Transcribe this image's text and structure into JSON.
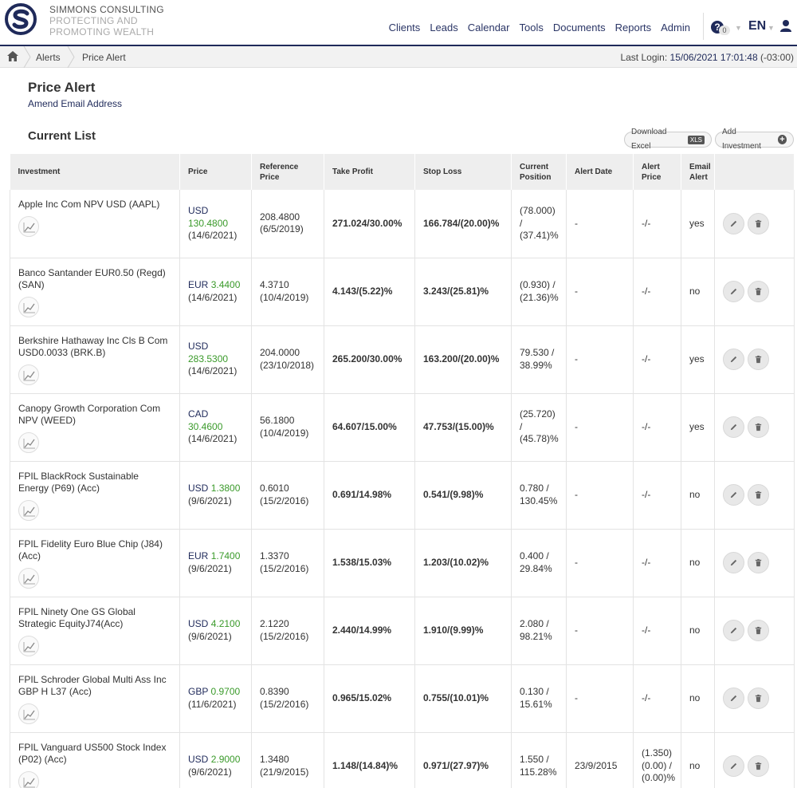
{
  "brand": {
    "line1": "SIMMONS CONSULTING",
    "line2": "PROTECTING AND",
    "line3": "PROMOTING WEALTH"
  },
  "nav": [
    "Clients",
    "Leads",
    "Calendar",
    "Tools",
    "Documents",
    "Reports",
    "Admin"
  ],
  "header": {
    "help_count": "0",
    "language": "EN"
  },
  "breadcrumb": [
    "Alerts",
    "Price Alert"
  ],
  "last_login": {
    "label": "Last Login:",
    "value": "15/06/2021 17:01:48",
    "tz": "(-03:00)"
  },
  "page": {
    "title": "Price Alert",
    "amend_link": "Amend Email Address",
    "section_title": "Current List"
  },
  "buttons": {
    "download": "Download Excel",
    "xls": "XLS",
    "add": "Add Investment"
  },
  "table": {
    "headers": [
      "Investment",
      "Price",
      "Reference Price",
      "Take Profit",
      "Stop Loss",
      "Current Position",
      "Alert Date",
      "Alert Price",
      "Email Alert"
    ],
    "rows": [
      {
        "name": "Apple Inc Com NPV USD (AAPL)",
        "currency": "USD",
        "price": "130.4800",
        "price_date": "(14/6/2021)",
        "ref_price": "208.4800",
        "ref_date": "(6/5/2019)",
        "take_profit": "271.024/30.00%",
        "stop_loss": "166.784/(20.00)%",
        "position": "(78.000) / (37.41)%",
        "position_negative": true,
        "alert_date": "-",
        "alert_price": "-/-",
        "email": "yes"
      },
      {
        "name": "Banco Santander EUR0.50 (Regd) (SAN)",
        "currency": "EUR",
        "price": "3.4400",
        "price_date": "(14/6/2021)",
        "ref_price": "4.3710",
        "ref_date": "(10/4/2019)",
        "take_profit": "4.143/(5.22)%",
        "stop_loss": "3.243/(25.81)%",
        "position": "(0.930) / (21.36)%",
        "position_negative": true,
        "alert_date": "-",
        "alert_price": "-/-",
        "email": "no"
      },
      {
        "name": "Berkshire Hathaway Inc Cls B Com USD0.0033 (BRK.B)",
        "currency": "USD",
        "price": "283.5300",
        "price_date": "(14/6/2021)",
        "ref_price": "204.0000",
        "ref_date": "(23/10/2018)",
        "take_profit": "265.200/30.00%",
        "stop_loss": "163.200/(20.00)%",
        "position": "79.530 / 38.99%",
        "position_negative": false,
        "alert_date": "-",
        "alert_price": "-/-",
        "email": "yes"
      },
      {
        "name": "Canopy Growth Corporation Com NPV (WEED)",
        "currency": "CAD",
        "price": "30.4600",
        "price_date": "(14/6/2021)",
        "ref_price": "56.1800",
        "ref_date": "(10/4/2019)",
        "take_profit": "64.607/15.00%",
        "stop_loss": "47.753/(15.00)%",
        "position": "(25.720) / (45.78)%",
        "position_negative": true,
        "alert_date": "-",
        "alert_price": "-/-",
        "email": "yes"
      },
      {
        "name": "FPIL BlackRock Sustainable Energy (P69) (Acc)",
        "currency": "USD",
        "price": "1.3800",
        "price_date": "(9/6/2021)",
        "ref_price": "0.6010",
        "ref_date": "(15/2/2016)",
        "take_profit": "0.691/14.98%",
        "stop_loss": "0.541/(9.98)%",
        "position": "0.780 / 130.45%",
        "position_negative": false,
        "alert_date": "-",
        "alert_price": "-/-",
        "email": "no"
      },
      {
        "name": "FPIL Fidelity Euro Blue Chip (J84) (Acc)",
        "currency": "EUR",
        "price": "1.7400",
        "price_date": "(9/6/2021)",
        "ref_price": "1.3370",
        "ref_date": "(15/2/2016)",
        "take_profit": "1.538/15.03%",
        "stop_loss": "1.203/(10.02)%",
        "position": "0.400 / 29.84%",
        "position_negative": false,
        "alert_date": "-",
        "alert_price": "-/-",
        "email": "no"
      },
      {
        "name": "FPIL Ninety One GS Global Strategic EquityJ74(Acc)",
        "currency": "USD",
        "price": "4.2100",
        "price_date": "(9/6/2021)",
        "ref_price": "2.1220",
        "ref_date": "(15/2/2016)",
        "take_profit": "2.440/14.99%",
        "stop_loss": "1.910/(9.99)%",
        "position": "2.080 / 98.21%",
        "position_negative": false,
        "alert_date": "-",
        "alert_price": "-/-",
        "email": "no"
      },
      {
        "name": "FPIL Schroder Global Multi Ass Inc GBP H L37 (Acc)",
        "currency": "GBP",
        "price": "0.9700",
        "price_date": "(11/6/2021)",
        "ref_price": "0.8390",
        "ref_date": "(15/2/2016)",
        "take_profit": "0.965/15.02%",
        "stop_loss": "0.755/(10.01)%",
        "position": "0.130 / 15.61%",
        "position_negative": false,
        "alert_date": "-",
        "alert_price": "-/-",
        "email": "no"
      },
      {
        "name": "FPIL Vanguard US500 Stock Index (P02) (Acc)",
        "currency": "USD",
        "price": "2.9000",
        "price_date": "(9/6/2021)",
        "ref_price": "1.3480",
        "ref_date": "(21/9/2015)",
        "take_profit": "1.148/(14.84)%",
        "stop_loss": "0.971/(27.97)%",
        "position": "1.550 / 115.28%",
        "position_negative": false,
        "alert_date": "23/9/2015",
        "alert_price": "(1.350) (0.00) / (0.00)%",
        "alert_price_negative": true,
        "email": "no"
      }
    ]
  },
  "colors": {
    "brand": "#1f2a5a",
    "positive": "#3a9a2a",
    "negative": "#cc0000"
  },
  "icons": {
    "logo": "s-logo-icon",
    "help": "help-icon",
    "user": "user-icon",
    "home": "home-icon",
    "chart": "line-chart-icon",
    "edit": "pencil-icon",
    "delete": "trash-icon"
  }
}
